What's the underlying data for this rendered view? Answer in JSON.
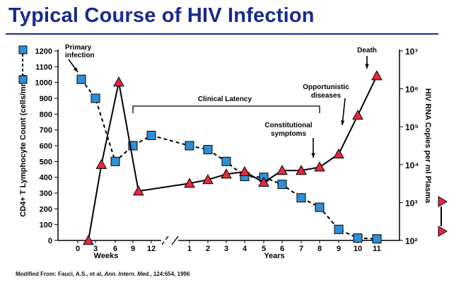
{
  "title": "Typical Course of HIV Infection",
  "source": {
    "prefix": "Modified From:  Fauci, A.S., et al, ",
    "journal": "Ann. Intern. Med.",
    "suffix": ", 124:654, 1996"
  },
  "colors": {
    "title": "#1a2a8c",
    "square_fill": "#2f8fd6",
    "triangle_fill": "#e8283c",
    "line": "#000000"
  },
  "chart_data": {
    "type": "line",
    "x_positions": [
      "0",
      "3",
      "6",
      "9",
      "12",
      "1",
      "2",
      "3",
      "4",
      "5",
      "6",
      "7",
      "8",
      "9",
      "10",
      "11"
    ],
    "x_segments": [
      {
        "label": "Weeks",
        "ticks": [
          "0",
          "3",
          "6",
          "9",
          "12"
        ]
      },
      {
        "label": "Years",
        "ticks": [
          "1",
          "2",
          "3",
          "4",
          "5",
          "6",
          "7",
          "8",
          "9",
          "10",
          "11"
        ]
      }
    ],
    "y_left": {
      "label": "CD4+ T Lymphocyte Count (cells/mm³)",
      "ticks": [
        0,
        100,
        200,
        300,
        400,
        500,
        600,
        700,
        800,
        900,
        1000,
        1100,
        1200
      ],
      "range": [
        0,
        1200
      ]
    },
    "y_right": {
      "label": "HIV RNA Copies per ml Plasma",
      "scale": "log",
      "ticks": [
        "10²",
        "10³",
        "10⁴",
        "10⁵",
        "10⁶",
        "10⁷"
      ],
      "range": [
        100,
        10000000
      ]
    },
    "series": [
      {
        "axis": "left",
        "marker": "square",
        "line_style": "dashed",
        "points": [
          {
            "x": 0.2,
            "y": 1020
          },
          {
            "x": 1,
            "y": 900
          },
          {
            "x": 2,
            "y": 500
          },
          {
            "x": 3,
            "y": 600
          },
          {
            "x": 4,
            "y": 665
          },
          {
            "x": 5,
            "y": 600
          },
          {
            "x": 6,
            "y": 575
          },
          {
            "x": 7,
            "y": 500
          },
          {
            "x": 8,
            "y": 405
          },
          {
            "x": 9,
            "y": 400
          },
          {
            "x": 10,
            "y": 355
          },
          {
            "x": 11,
            "y": 270
          },
          {
            "x": 12,
            "y": 210
          },
          {
            "x": 13,
            "y": 70
          },
          {
            "x": 14,
            "y": 15
          },
          {
            "x": 15,
            "y": 10
          }
        ],
        "break_after_index": 4
      },
      {
        "axis": "right",
        "marker": "triangle",
        "line_style": "solid",
        "points": [
          {
            "x": 0.6,
            "y": 100
          },
          {
            "x": 1.3,
            "y": 10000
          },
          {
            "x": 2.2,
            "y": 1500000
          },
          {
            "x": 3.3,
            "y": 2000
          },
          {
            "x": 5,
            "y": 3200
          },
          {
            "x": 6,
            "y": 4000
          },
          {
            "x": 7,
            "y": 5600
          },
          {
            "x": 8,
            "y": 6500
          },
          {
            "x": 9,
            "y": 3400
          },
          {
            "x": 10,
            "y": 7000
          },
          {
            "x": 11,
            "y": 7000
          },
          {
            "x": 12,
            "y": 8600
          },
          {
            "x": 13,
            "y": 19000
          },
          {
            "x": 14,
            "y": 200000
          },
          {
            "x": 15,
            "y": 2200000
          }
        ],
        "break_after_index": 3
      }
    ],
    "annotations": {
      "primary_infection": "Primary\ninfection",
      "clinical_latency": "Clinical Latency",
      "constitutional_symptoms": "Constitutional\nsymptoms",
      "opportunistic_diseases": "Opportunistic\ndiseases",
      "death": "Death"
    }
  }
}
